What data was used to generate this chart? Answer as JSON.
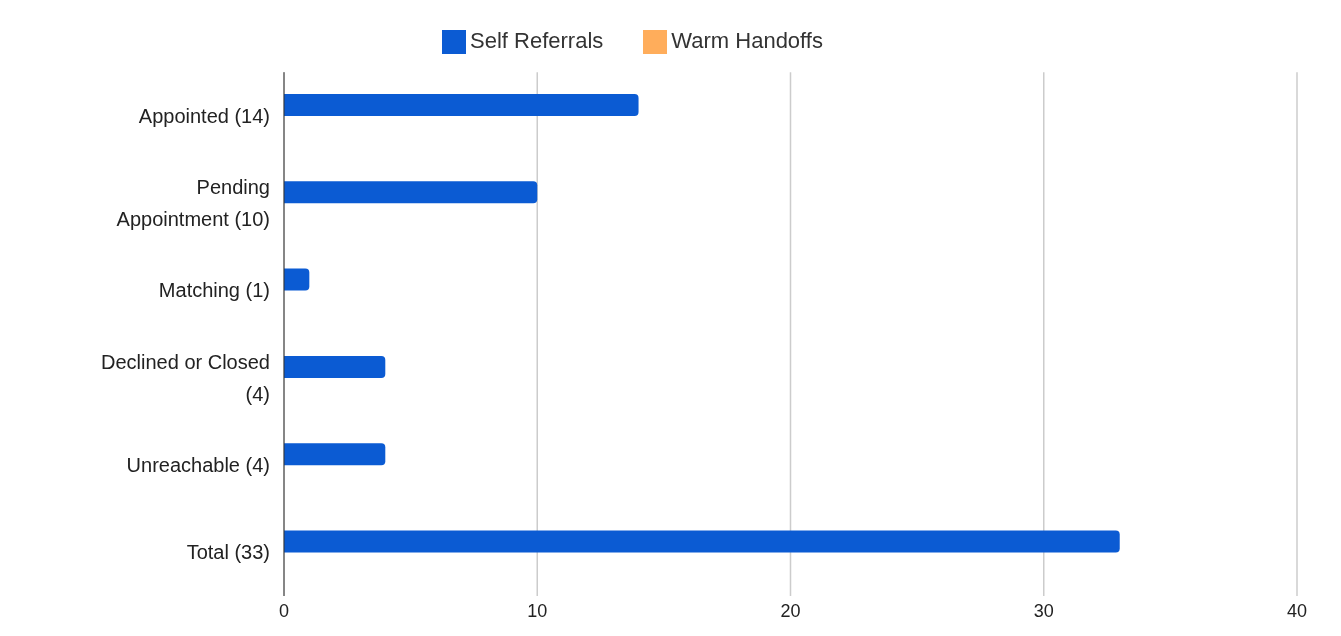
{
  "chart_data": {
    "type": "bar",
    "orientation": "horizontal",
    "categories": [
      "Appointed (14)",
      "Pending Appointment (10)",
      "Matching (1)",
      "Declined or Closed (4)",
      "Unreachable (4)",
      "Total (33)"
    ],
    "series": [
      {
        "name": "Self Referrals",
        "color": "#0b5bd3",
        "values": [
          14,
          10,
          1,
          4,
          4,
          33
        ]
      },
      {
        "name": "Warm Handoffs",
        "color": "#ffad5b",
        "values": [
          0,
          0,
          0,
          0,
          0,
          0
        ]
      }
    ],
    "xlim": [
      0,
      40
    ],
    "xticks": [
      0,
      10,
      20,
      30,
      40
    ],
    "grid": "x",
    "legend": "top"
  }
}
